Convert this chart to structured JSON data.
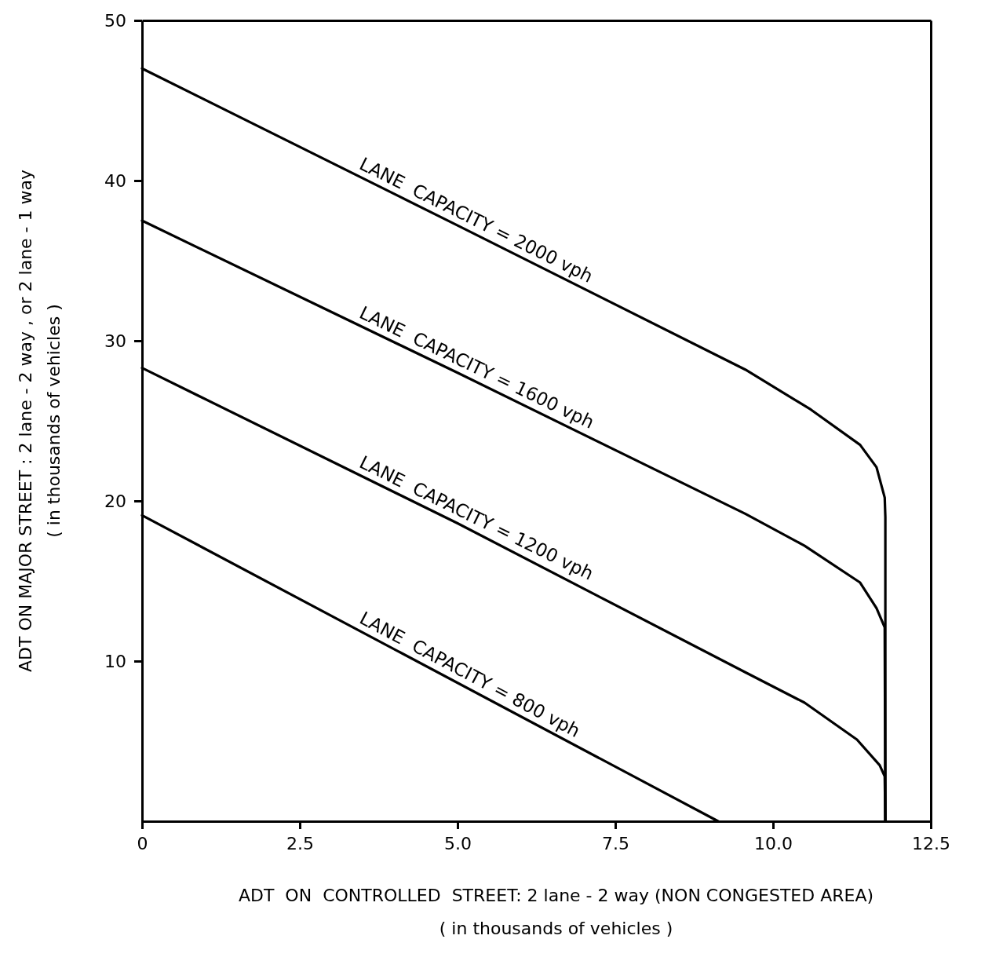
{
  "chart_data": {
    "type": "line",
    "xlabel": "ADT  ON  CONTROLLED  STREET: 2 lane - 2 way (NON CONGESTED AREA)\n( in thousands of vehicles )",
    "ylabel": "ADT ON MAJOR STREET : 2 lane - 2 way , or 2 lane - 1 way\n( in thousands of vehicles )",
    "xlim": [
      0,
      12.5
    ],
    "ylim": [
      0,
      50
    ],
    "xticks": [
      0,
      2.5,
      {
        "value": 5,
        "label": "5.0"
      },
      7.5,
      {
        "value": 10,
        "label": "10.0"
      },
      12.5
    ],
    "yticks": [
      10,
      20,
      30,
      40,
      50
    ],
    "grid": false,
    "legend": false,
    "marker": "none",
    "line_style": "solid",
    "series": [
      {
        "name": "LANE  CAPACITY = 2000 vph",
        "color": "#000000",
        "x": [
          0,
          5,
          9.56,
          10.6,
          11.38,
          11.64,
          11.77,
          11.78,
          11.78
        ],
        "values": [
          47.0,
          37.2,
          28.2,
          25.7,
          23.5,
          22.1,
          20.2,
          19.0,
          0
        ]
      },
      {
        "name": "LANE  CAPACITY = 1600 vph",
        "color": "#000000",
        "x": [
          0,
          5,
          9.56,
          10.5,
          11.38,
          11.64,
          11.77,
          11.78
        ],
        "values": [
          37.5,
          28.0,
          19.2,
          17.2,
          14.9,
          13.3,
          12.1,
          0
        ]
      },
      {
        "name": "LANE  CAPACITY = 1200 vph",
        "color": "#000000",
        "x": [
          0,
          5,
          9.56,
          10.5,
          11.33,
          11.69,
          11.77,
          11.78
        ],
        "values": [
          28.3,
          18.6,
          9.3,
          7.4,
          5.1,
          3.5,
          2.8,
          0
        ]
      },
      {
        "name": "LANE  CAPACITY = 800 vph",
        "color": "#000000",
        "x": [
          0,
          9.13
        ],
        "values": [
          19.1,
          0
        ]
      }
    ]
  }
}
